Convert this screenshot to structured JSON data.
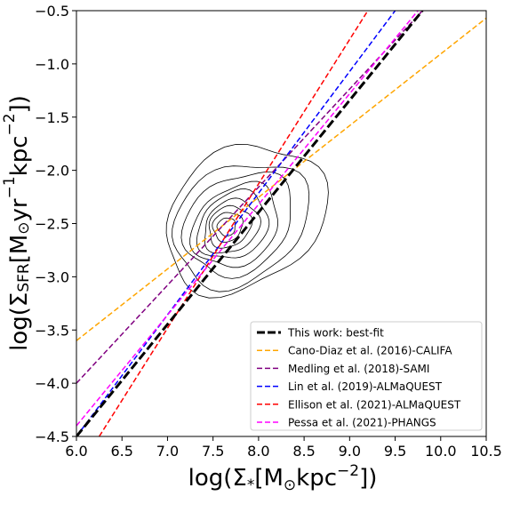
{
  "chart_data": {
    "type": "line",
    "xlabel_main": "log(Σ",
    "xlabel_sub": "*",
    "xlabel_rest": "[M",
    "xlabel_sun": "⊙",
    "xlabel_unit": "kpc",
    "xlabel_exp": "−2",
    "xlabel_close": "])",
    "ylabel_main": "log(Σ",
    "ylabel_sub": "SFR",
    "ylabel_rest": "[M",
    "ylabel_sun": "⊙",
    "ylabel_unit1": "yr",
    "ylabel_exp1": "−1",
    "ylabel_unit2": "kpc",
    "ylabel_exp2": "−2",
    "ylabel_close": "])",
    "xlim": [
      6.0,
      10.5
    ],
    "ylim": [
      -4.5,
      -0.5
    ],
    "xticks": [
      "6.0",
      "6.5",
      "7.0",
      "7.5",
      "8.0",
      "8.5",
      "9.0",
      "9.5",
      "10.0",
      "10.5"
    ],
    "yticks": [
      "−4.5",
      "−4.0",
      "−3.5",
      "−3.0",
      "−2.5",
      "−2.0",
      "−1.5",
      "−1.0",
      "−0.5"
    ],
    "legend_position": "lower-right",
    "series": [
      {
        "name": "This work: best-fit",
        "color": "#000000",
        "width": 3,
        "x": [
          6.0,
          9.8
        ],
        "y": [
          -4.5,
          -0.5
        ]
      },
      {
        "name": "Cano-Diaz et al. (2016)-CALIFA",
        "color": "#FFA500",
        "width": 1.5,
        "x": [
          6.0,
          10.5
        ],
        "y": [
          -3.6,
          -0.57
        ]
      },
      {
        "name": "Medling et al. (2018)-SAMI",
        "color": "#800080",
        "width": 1.5,
        "x": [
          6.0,
          9.8
        ],
        "y": [
          -4.0,
          -0.5
        ]
      },
      {
        "name": "Lin et al. (2019)-ALMaQUEST",
        "color": "#0000FF",
        "width": 1.5,
        "x": [
          6.0,
          9.5
        ],
        "y": [
          -4.5,
          -0.5
        ]
      },
      {
        "name": "Ellison et al. (2021)-ALMaQUEST",
        "color": "#FF0000",
        "width": 1.5,
        "x": [
          6.25,
          9.2
        ],
        "y": [
          -4.5,
          -0.5
        ]
      },
      {
        "name": "Pessa et al. (2021)-PHANGS",
        "color": "#FF00FF",
        "width": 1.5,
        "x": [
          6.0,
          9.75
        ],
        "y": [
          -4.4,
          -0.5
        ]
      }
    ],
    "contours": [
      {
        "cx": 7.85,
        "cy": -2.45,
        "rx": 0.95,
        "ry": 1.05,
        "rot": -35
      },
      {
        "cx": 7.8,
        "cy": -2.5,
        "rx": 0.8,
        "ry": 0.88,
        "rot": -35
      },
      {
        "cx": 7.78,
        "cy": -2.5,
        "rx": 0.65,
        "ry": 0.72,
        "rot": -38
      },
      {
        "cx": 7.75,
        "cy": -2.52,
        "rx": 0.52,
        "ry": 0.58,
        "rot": -40
      },
      {
        "cx": 7.72,
        "cy": -2.52,
        "rx": 0.42,
        "ry": 0.48,
        "rot": -40
      },
      {
        "cx": 7.7,
        "cy": -2.53,
        "rx": 0.33,
        "ry": 0.38,
        "rot": -42
      },
      {
        "cx": 7.68,
        "cy": -2.53,
        "rx": 0.25,
        "ry": 0.3,
        "rot": -42
      },
      {
        "cx": 7.66,
        "cy": -2.53,
        "rx": 0.17,
        "ry": 0.22,
        "rot": -44
      },
      {
        "cx": 7.65,
        "cy": -2.53,
        "rx": 0.1,
        "ry": 0.14,
        "rot": -45
      }
    ]
  }
}
